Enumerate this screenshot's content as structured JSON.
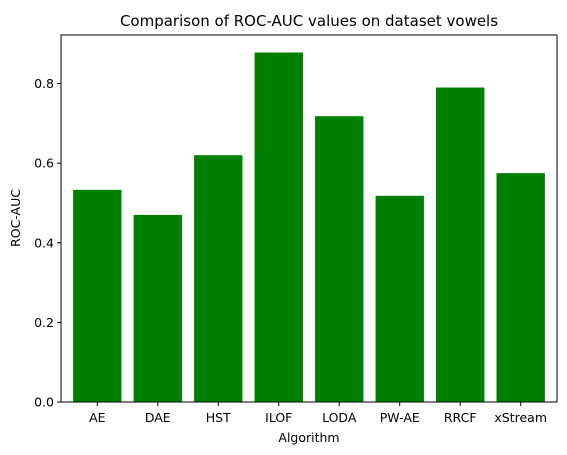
{
  "chart_data": {
    "type": "bar",
    "title": "Comparison of ROC-AUC values on dataset vowels",
    "xlabel": "Algorithm",
    "ylabel": "ROC-AUC",
    "categories": [
      "AE",
      "DAE",
      "HST",
      "ILOF",
      "LODA",
      "PW-AE",
      "RRCF",
      "xStream"
    ],
    "values": [
      0.533,
      0.47,
      0.62,
      0.878,
      0.718,
      0.518,
      0.79,
      0.575
    ],
    "ylim": [
      0,
      0.922
    ],
    "yticks": [
      0.0,
      0.2,
      0.4,
      0.6,
      0.8
    ],
    "ytick_labels": [
      "0.0",
      "0.2",
      "0.4",
      "0.6",
      "0.8"
    ],
    "bar_color": "#008000",
    "grid": false,
    "legend": "none"
  }
}
